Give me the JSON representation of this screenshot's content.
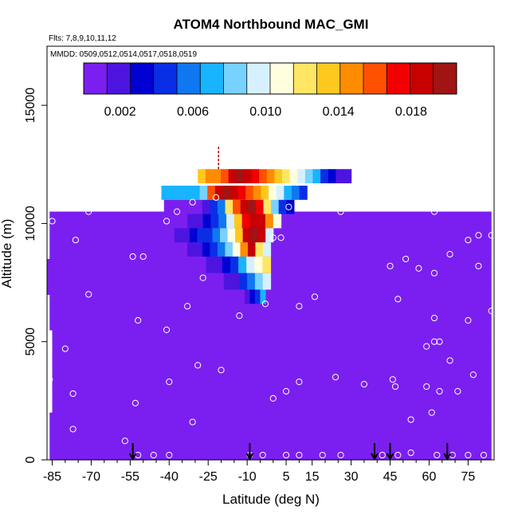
{
  "chart_data": {
    "type": "heatmap",
    "title": "ATOM4 Northbound MAC_GMI",
    "subtitle_lines": [
      "Flts: 7,8,9,10,11,12",
      "MMDD: 0509,0512,0514,0517,0518,0519"
    ],
    "xlabel": "Latitude (deg N)",
    "ylabel": "Altitude (m)",
    "xlim": [
      -87,
      85
    ],
    "ylim": [
      0,
      17500
    ],
    "x_ticks": [
      -85,
      -70,
      -55,
      -40,
      -25,
      -10,
      5,
      15,
      30,
      45,
      60,
      75
    ],
    "x_minor_ticks": [
      -80,
      -75,
      -65,
      -60,
      -50,
      -45,
      -35,
      -30,
      -20,
      -15,
      -5,
      0,
      10,
      20,
      25,
      35,
      40,
      50,
      55,
      65,
      70,
      80
    ],
    "y_ticks": [
      0,
      5000,
      10000,
      15000
    ],
    "colorbar": {
      "ticks": [
        0.002,
        0.006,
        0.01,
        0.014,
        0.018
      ],
      "tick_labels": [
        "0.002",
        "0.006",
        "0.010",
        "0.014",
        "0.018"
      ],
      "range": [
        0.0,
        0.0205
      ],
      "colors": [
        "#7b1ff0",
        "#4d14e0",
        "#0000d2",
        "#0a2ee6",
        "#0f78f0",
        "#18b4ff",
        "#78d2ff",
        "#d7f0ff",
        "#ffffe0",
        "#ffe664",
        "#ffc81e",
        "#ff8c00",
        "#ff5000",
        "#f00000",
        "#c80000",
        "#a01414"
      ]
    },
    "background_value": 0.0,
    "filled_region": {
      "rows_lat_min": [
        -86,
        -86,
        -86,
        -86,
        -85,
        -85,
        -85,
        -85,
        -85,
        -85,
        -85,
        -86,
        -86,
        -86,
        -87,
        -87,
        -87,
        -86,
        -86,
        -86,
        -86,
        -86,
        -86,
        -86,
        -86
      ],
      "lat_max": 84,
      "top_altitude": 10500,
      "alt_step": 500
    },
    "plume_cells": [
      {
        "lat": -29,
        "lat2": 30,
        "alt": 11700,
        "alt2": 12300,
        "values": [
          0.014,
          0.0145,
          0.015,
          0.016,
          0.0185,
          0.02,
          0.019,
          0.0175,
          0.016,
          0.0145,
          0.0135,
          0.0125,
          0.011,
          0.0095,
          0.008,
          0.0065,
          0.0045,
          0.003,
          0.002,
          0.0015
        ]
      },
      {
        "lat": -43,
        "lat2": 13,
        "alt": 11000,
        "alt2": 11600,
        "values": [
          0.0065,
          0.0065,
          0.007,
          0.007,
          0.0075,
          0.008,
          0.016,
          0.018,
          0.02,
          0.019,
          0.0175,
          0.016,
          0.0145,
          0.013,
          0.011,
          0.0095,
          0.0075,
          0.006,
          0.004
        ]
      },
      {
        "lat": -42,
        "lat2": 8,
        "alt": 10400,
        "alt2": 11000,
        "values": [
          0.0005,
          0.0005,
          0.0005,
          0.0005,
          0.001,
          0.002,
          0.004,
          0.006,
          0.012,
          0.016,
          0.019,
          0.02,
          0.017,
          0.012,
          0.008,
          0.005,
          0.003
        ]
      },
      {
        "lat": -36,
        "lat2": 3,
        "alt": 9800,
        "alt2": 10400,
        "values": [
          0.001,
          0.0015,
          0.002,
          0.003,
          0.004,
          0.006,
          0.009,
          0.013,
          0.017,
          0.019,
          0.018,
          0.015,
          0.011
        ]
      },
      {
        "lat": -38,
        "lat2": 0,
        "alt": 9200,
        "alt2": 9800,
        "values": [
          0.0015,
          0.002,
          0.003,
          0.004,
          0.005,
          0.006,
          0.008,
          0.011,
          0.014,
          0.018,
          0.02,
          0.019,
          0.01
        ]
      },
      {
        "lat": -36,
        "lat2": -1,
        "alt": 8600,
        "alt2": 9200,
        "values": [
          0.001,
          0.0015,
          0.002,
          0.003,
          0.004,
          0.006,
          0.008,
          0.011,
          0.015,
          0.018,
          0.012,
          0.009
        ]
      },
      {
        "lat": -32,
        "lat2": -1,
        "alt": 7900,
        "alt2": 8600,
        "values": [
          0.0005,
          0.001,
          0.0015,
          0.002,
          0.003,
          0.005,
          0.007,
          0.009,
          0.011,
          0.012
        ]
      },
      {
        "lat": -25,
        "lat2": -1,
        "alt": 7200,
        "alt2": 7900,
        "values": [
          0.0005,
          0.001,
          0.0015,
          0.002,
          0.004,
          0.006,
          0.008,
          0.01
        ]
      },
      {
        "lat": -13,
        "lat2": -3,
        "alt": 6600,
        "alt2": 7200,
        "values": [
          0.001,
          0.002,
          0.003,
          0.005,
          0.007
        ]
      }
    ],
    "dark_patches": [
      {
        "lat": -60,
        "lat2": -20,
        "alt": 200,
        "alt2": 1500,
        "value": 0.0007
      },
      {
        "lat": -45,
        "lat2": -30,
        "alt": 9000,
        "alt2": 10300,
        "value": 0.0012
      },
      {
        "lat": 53,
        "lat2": 65,
        "alt": 5000,
        "alt2": 6500,
        "value": 0.0012
      },
      {
        "lat": -82,
        "lat2": -70,
        "alt": 4000,
        "alt2": 5500,
        "value": 0.0005
      }
    ],
    "marker_line": {
      "lat": -21,
      "alt": 12300,
      "alt2": 13300
    },
    "sample_points": [
      {
        "lat": -85,
        "alt": 10100
      },
      {
        "lat": -71,
        "alt": 10500
      },
      {
        "lat": -76,
        "alt": 9300
      },
      {
        "lat": -71,
        "alt": 7000
      },
      {
        "lat": -80,
        "alt": 4700
      },
      {
        "lat": -77,
        "alt": 2800
      },
      {
        "lat": -77,
        "alt": 1300
      },
      {
        "lat": -86,
        "alt": 3400
      },
      {
        "lat": -57,
        "alt": 800
      },
      {
        "lat": -52,
        "alt": 200
      },
      {
        "lat": -46,
        "alt": 200
      },
      {
        "lat": -40,
        "alt": 200
      },
      {
        "lat": -31,
        "alt": 1600
      },
      {
        "lat": -53,
        "alt": 2400
      },
      {
        "lat": -40,
        "alt": 3300
      },
      {
        "lat": -29,
        "alt": 4000
      },
      {
        "lat": -20,
        "alt": 3800
      },
      {
        "lat": -41,
        "alt": 5500
      },
      {
        "lat": -52,
        "alt": 5900
      },
      {
        "lat": -33,
        "alt": 6500
      },
      {
        "lat": -27,
        "alt": 7700
      },
      {
        "lat": -54,
        "alt": 8600
      },
      {
        "lat": -50,
        "alt": 8600
      },
      {
        "lat": -41,
        "alt": 10100
      },
      {
        "lat": -37,
        "alt": 10500
      },
      {
        "lat": -31,
        "alt": 10900
      },
      {
        "lat": -22,
        "alt": 11100
      },
      {
        "lat": 3,
        "alt": 9400
      },
      {
        "lat": 0,
        "alt": 9400
      },
      {
        "lat": 6,
        "alt": 10700
      },
      {
        "lat": 14,
        "alt": 10800
      },
      {
        "lat": 20,
        "alt": 10700
      },
      {
        "lat": 26,
        "alt": 10500
      },
      {
        "lat": 42,
        "alt": 10700
      },
      {
        "lat": 52,
        "alt": 11100
      },
      {
        "lat": 62,
        "alt": 10500
      },
      {
        "lat": 71,
        "alt": 10800
      },
      {
        "lat": 76,
        "alt": 10700
      },
      {
        "lat": 79,
        "alt": 9500
      },
      {
        "lat": 84,
        "alt": 9500
      },
      {
        "lat": 75,
        "alt": 9300
      },
      {
        "lat": 68,
        "alt": 8700
      },
      {
        "lat": 79,
        "alt": 8200
      },
      {
        "lat": 56,
        "alt": 8100
      },
      {
        "lat": 62,
        "alt": 7900
      },
      {
        "lat": 51,
        "alt": 8500
      },
      {
        "lat": 45,
        "alt": 8200
      },
      {
        "lat": 48,
        "alt": 6800
      },
      {
        "lat": 62,
        "alt": 6000
      },
      {
        "lat": 75,
        "alt": 5900
      },
      {
        "lat": 84,
        "alt": 6300
      },
      {
        "lat": 59,
        "alt": 4800
      },
      {
        "lat": 62,
        "alt": 5000
      },
      {
        "lat": 64,
        "alt": 5000
      },
      {
        "lat": 68,
        "alt": 4200
      },
      {
        "lat": 77,
        "alt": 3600
      },
      {
        "lat": 59,
        "alt": 3100
      },
      {
        "lat": 64,
        "alt": 2900
      },
      {
        "lat": 71,
        "alt": 2900
      },
      {
        "lat": 46,
        "alt": 3400
      },
      {
        "lat": 47,
        "alt": 3100
      },
      {
        "lat": 35,
        "alt": 3200
      },
      {
        "lat": 24,
        "alt": 3500
      },
      {
        "lat": 10,
        "alt": 3300
      },
      {
        "lat": 5,
        "alt": 2900
      },
      {
        "lat": 0,
        "alt": 2600
      },
      {
        "lat": 53,
        "alt": 1700
      },
      {
        "lat": 61,
        "alt": 2000
      },
      {
        "lat": -3,
        "alt": 6600
      },
      {
        "lat": 10,
        "alt": 6500
      },
      {
        "lat": 16,
        "alt": 6900
      },
      {
        "lat": -13,
        "alt": 6100
      },
      {
        "lat": -9,
        "alt": 200
      },
      {
        "lat": -4,
        "alt": 200
      },
      {
        "lat": 5,
        "alt": 200
      },
      {
        "lat": 10,
        "alt": 200
      },
      {
        "lat": 19,
        "alt": 200
      },
      {
        "lat": 26,
        "alt": 200
      },
      {
        "lat": 42,
        "alt": 200
      },
      {
        "lat": 48,
        "alt": 200
      },
      {
        "lat": 53,
        "alt": 300
      },
      {
        "lat": 63,
        "alt": 200
      },
      {
        "lat": 69,
        "alt": 200
      },
      {
        "lat": 75,
        "alt": 200
      },
      {
        "lat": 81,
        "alt": 200
      }
    ],
    "arrows": [
      -54,
      -9,
      39,
      45,
      67
    ]
  }
}
